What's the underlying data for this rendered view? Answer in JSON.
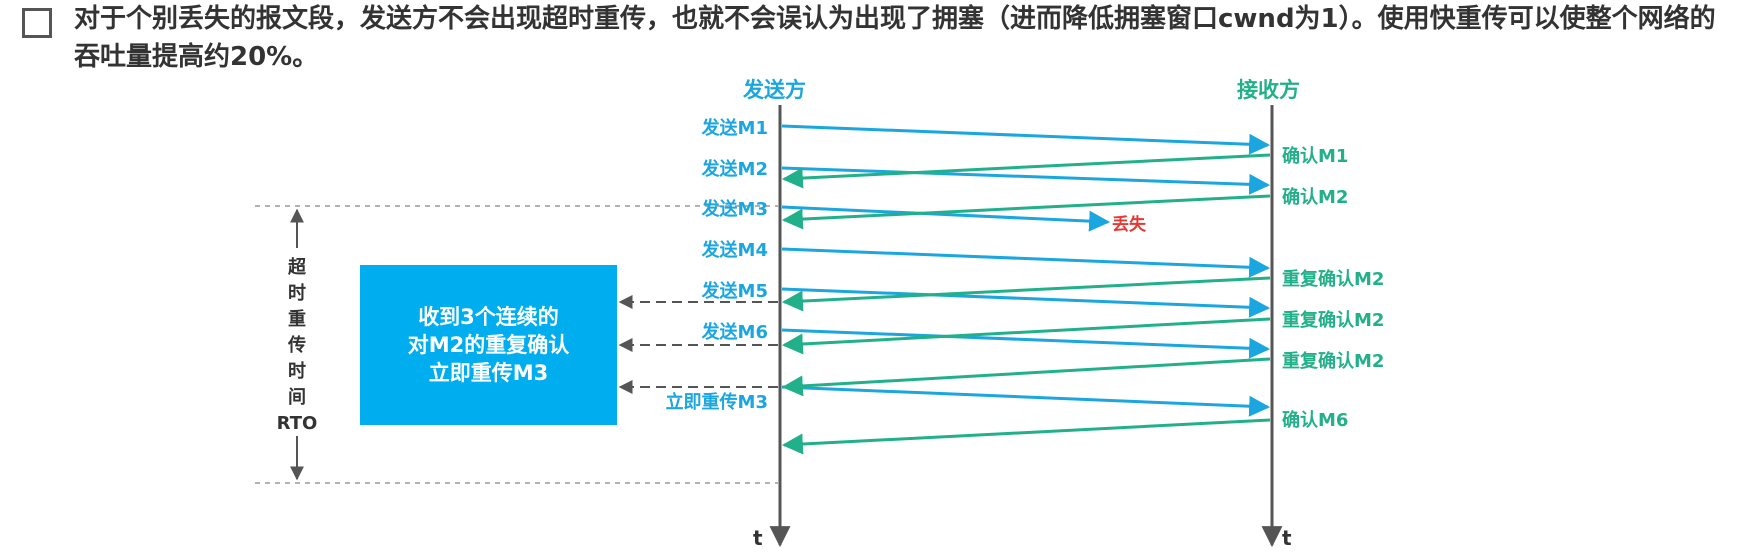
{
  "header": {
    "text": "对于个别丢失的报文段，发送方不会出现超时重传，也就不会误认为出现了拥塞（进而降低拥塞窗口cwnd为1）。使用快重传可以使整个网络的吞吐量提高约20%。"
  },
  "diagram": {
    "sender_title": "发送方",
    "receiver_title": "接收方",
    "time_label_left": "t",
    "time_label_right": "t",
    "timeout": {
      "chars": [
        "超",
        "时",
        "重",
        "传",
        "时",
        "间"
      ],
      "rto": "RTO"
    },
    "box": {
      "line1": "收到3个连续的",
      "line2": "对M2的重复确认",
      "line3": "立即重传M3"
    },
    "sends": [
      {
        "label": "发送M1"
      },
      {
        "label": "发送M2"
      },
      {
        "label": "发送M3"
      },
      {
        "label": "发送M4"
      },
      {
        "label": "发送M5"
      },
      {
        "label": "发送M6"
      },
      {
        "label": "立即重传M3"
      }
    ],
    "acks": [
      {
        "label": "确认M1"
      },
      {
        "label": "确认M2"
      },
      {
        "label": "重复确认M2"
      },
      {
        "label": "重复确认M2"
      },
      {
        "label": "重复确认M2"
      },
      {
        "label": "确认M6"
      }
    ],
    "lost_label": "丢失",
    "colors": {
      "send": "#1ba6e0",
      "ack": "#22b08a",
      "lost": "#e53935",
      "box": "#00aeef",
      "axis": "#555555"
    }
  }
}
